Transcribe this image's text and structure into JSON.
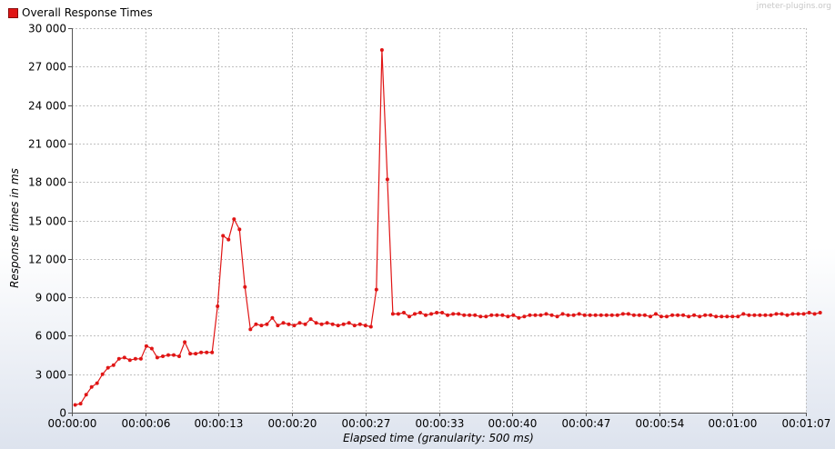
{
  "header": {
    "watermark": "jmeter-plugins.org"
  },
  "chart_data": {
    "type": "line",
    "title": "",
    "xlabel": "Elapsed time (granularity: 500 ms)",
    "ylabel": "Response times in ms",
    "xlim": [
      0,
      67
    ],
    "ylim": [
      0,
      30000
    ],
    "grid": true,
    "legend_position": "top-left",
    "y_ticks": [
      0,
      3000,
      6000,
      9000,
      12000,
      15000,
      18000,
      21000,
      24000,
      27000,
      30000
    ],
    "y_tick_labels": [
      "0",
      "3 000",
      "6 000",
      "9 000",
      "12 000",
      "15 000",
      "18 000",
      "21 000",
      "24 000",
      "27 000",
      "30 000"
    ],
    "x_ticks": [
      0,
      6.7,
      13.4,
      20.1,
      26.8,
      33.5,
      40.2,
      46.9,
      53.6,
      60.3,
      67
    ],
    "x_tick_labels": [
      "00:00:00",
      "00:00:06",
      "00:00:13",
      "00:00:20",
      "00:00:27",
      "00:00:33",
      "00:00:40",
      "00:00:47",
      "00:00:54",
      "00:01:00",
      "00:01:07"
    ],
    "series": [
      {
        "name": "Overall Response Times",
        "color": "#e01515",
        "x_start": 0.3,
        "x_step": 0.5,
        "values": [
          600,
          700,
          1400,
          2000,
          2300,
          3000,
          3500,
          3700,
          4200,
          4300,
          4100,
          4200,
          4200,
          5200,
          5000,
          4300,
          4400,
          4500,
          4500,
          4400,
          5500,
          4600,
          4600,
          4700,
          4700,
          4700,
          8300,
          13800,
          13500,
          15100,
          14300,
          9800,
          6500,
          6900,
          6800,
          6900,
          7400,
          6800,
          7000,
          6900,
          6800,
          7000,
          6900,
          7300,
          7000,
          6900,
          7000,
          6900,
          6800,
          6900,
          7000,
          6800,
          6900,
          6800,
          6700,
          9600,
          28300,
          18200,
          7700,
          7700,
          7800,
          7500,
          7700,
          7800,
          7600,
          7700,
          7800,
          7800,
          7600,
          7700,
          7700,
          7600,
          7600,
          7600,
          7500,
          7500,
          7600,
          7600,
          7600,
          7500,
          7600,
          7400,
          7500,
          7600,
          7600,
          7600,
          7700,
          7600,
          7500,
          7700,
          7600,
          7600,
          7700,
          7600,
          7600,
          7600,
          7600,
          7600,
          7600,
          7600,
          7700,
          7700,
          7600,
          7600,
          7600,
          7500,
          7700,
          7500,
          7500,
          7600,
          7600,
          7600,
          7500,
          7600,
          7500,
          7600,
          7600,
          7500,
          7500,
          7500,
          7500,
          7500,
          7700,
          7600,
          7600,
          7600,
          7600,
          7600,
          7700,
          7700,
          7600,
          7700,
          7700,
          7700,
          7800,
          7700,
          7800
        ]
      }
    ]
  }
}
